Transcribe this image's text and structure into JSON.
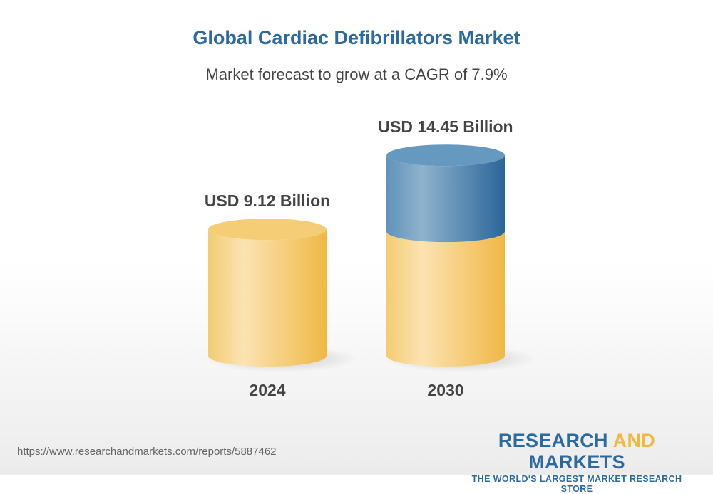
{
  "chart_data": {
    "type": "bar",
    "title": "Global Cardiac Defibrillators Market",
    "subtitle": "Market forecast to grow at a CAGR of 7.9%",
    "categories": [
      "2024",
      "2030"
    ],
    "values": [
      9.12,
      14.45
    ],
    "data_labels": [
      "USD 9.12 Billion",
      "USD 14.45 Billion"
    ],
    "unit": "USD Billion",
    "style": "3d-cylinder",
    "colors": {
      "base": "#f2c05a",
      "growth": "#3d78a8"
    }
  },
  "footer": {
    "url": "https://www.researchandmarkets.com/reports/5887462",
    "logo": {
      "word1": "RESEARCH",
      "word2": "AND",
      "word3": "MARKETS",
      "tagline": "THE WORLD'S LARGEST MARKET RESEARCH STORE"
    }
  }
}
